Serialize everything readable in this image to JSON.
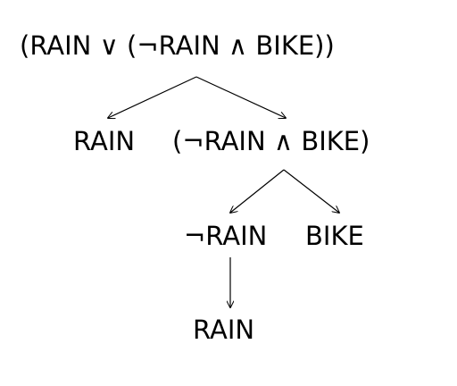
{
  "tree": {
    "root": "(RAIN ∨ (¬RAIN ∧ BIKE))",
    "level1": {
      "left": "RAIN",
      "right": "(¬RAIN ∧ BIKE)"
    },
    "level2": {
      "left": "¬RAIN",
      "right": "BIKE"
    },
    "level3": {
      "only": "RAIN"
    }
  },
  "colors": {
    "text": "#000000",
    "edge": "#000000",
    "background": "#ffffff"
  }
}
